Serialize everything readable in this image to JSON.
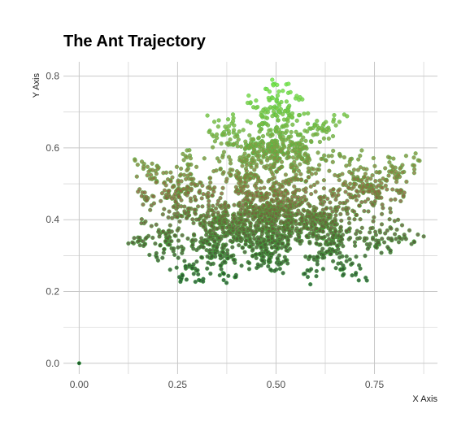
{
  "chart_data": {
    "type": "scatter",
    "title": "The Ant Trajectory",
    "xlabel": "X Axis",
    "ylabel": "Y Axis",
    "xlim": [
      -0.04,
      0.91
    ],
    "ylim": [
      -0.03,
      0.84
    ],
    "x_ticks": [
      0.0,
      0.25,
      0.5,
      0.75
    ],
    "x_tick_labels": [
      "0.00",
      "0.25",
      "0.50",
      "0.75"
    ],
    "y_ticks": [
      0.0,
      0.2,
      0.4,
      0.6,
      0.8
    ],
    "y_tick_labels": [
      "0.0",
      "0.2",
      "0.4",
      "0.6",
      "0.8"
    ],
    "grid": true,
    "legend": "none",
    "colors": {
      "point_low": "#1f5a2e",
      "point_mid": "#8a6a42",
      "point_high": "#78e84a",
      "point_outline": "#3cc63c",
      "grid": "#c8c8c8"
    },
    "shape": "maple-leaf fractal point cloud",
    "points_sample": [
      {
        "x": 0.0,
        "y": 0.0
      },
      {
        "x": 0.5,
        "y": 0.79
      },
      {
        "x": 0.37,
        "y": 0.67
      },
      {
        "x": 0.63,
        "y": 0.67
      },
      {
        "x": 0.15,
        "y": 0.54
      },
      {
        "x": 0.85,
        "y": 0.54
      },
      {
        "x": 0.13,
        "y": 0.33
      },
      {
        "x": 0.87,
        "y": 0.33
      },
      {
        "x": 0.29,
        "y": 0.225
      },
      {
        "x": 0.71,
        "y": 0.225
      },
      {
        "x": 0.5,
        "y": 0.45
      }
    ],
    "n_points_drawn": 2600
  }
}
